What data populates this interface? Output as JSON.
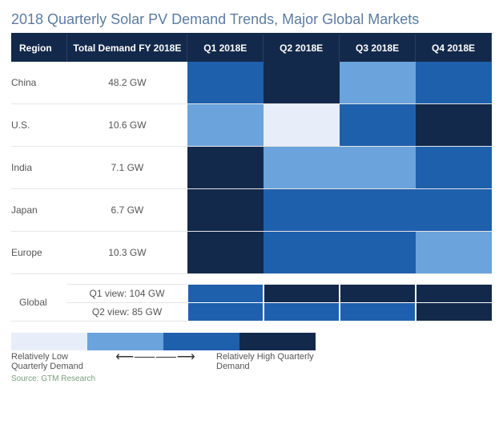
{
  "title": "2018 Quarterly Solar PV Demand Trends, Major Global Markets",
  "palette": {
    "level1": "#e7eef9",
    "level2": "#6ba3dc",
    "level3": "#1f60ad",
    "level4": "#13294b",
    "header_bg": "#13294b",
    "header_fg": "#ffffff",
    "title_color": "#5b7ca3",
    "grid": "#e6e6e6"
  },
  "headers": {
    "region": "Region",
    "total": "Total Demand FY 2018E",
    "q1": "Q1 2018E",
    "q2": "Q2 2018E",
    "q3": "Q3 2018E",
    "q4": "Q4 2018E"
  },
  "rows": [
    {
      "region": "China",
      "total": "48.2 GW",
      "cells": [
        "level3",
        "level4",
        "level2",
        "level3"
      ]
    },
    {
      "region": "U.S.",
      "total": "10.6 GW",
      "cells": [
        "level2",
        "level1",
        "level3",
        "level4"
      ]
    },
    {
      "region": "India",
      "total": "7.1 GW",
      "cells": [
        "level4",
        "level2",
        "level2",
        "level3"
      ]
    },
    {
      "region": "Japan",
      "total": "6.7 GW",
      "cells": [
        "level4",
        "level3",
        "level3",
        "level3"
      ]
    },
    {
      "region": "Europe",
      "total": "10.3 GW",
      "cells": [
        "level4",
        "level3",
        "level3",
        "level2"
      ]
    }
  ],
  "global": {
    "label": "Global",
    "views": [
      {
        "label": "Q1 view: 104 GW",
        "cells": [
          "level3",
          "level4",
          "level4",
          "level4"
        ]
      },
      {
        "label": "Q2 view: 85 GW",
        "cells": [
          "level3",
          "level3",
          "level3",
          "level4"
        ]
      }
    ]
  },
  "legend": {
    "swatches": [
      "level1",
      "level2",
      "level3",
      "level4"
    ],
    "low": "Relatively Low Quarterly Demand",
    "high": "Relatively High Quarterly Demand",
    "arrow": "⟵⸺⸺⟶"
  },
  "source": "Source: GTM Research"
}
